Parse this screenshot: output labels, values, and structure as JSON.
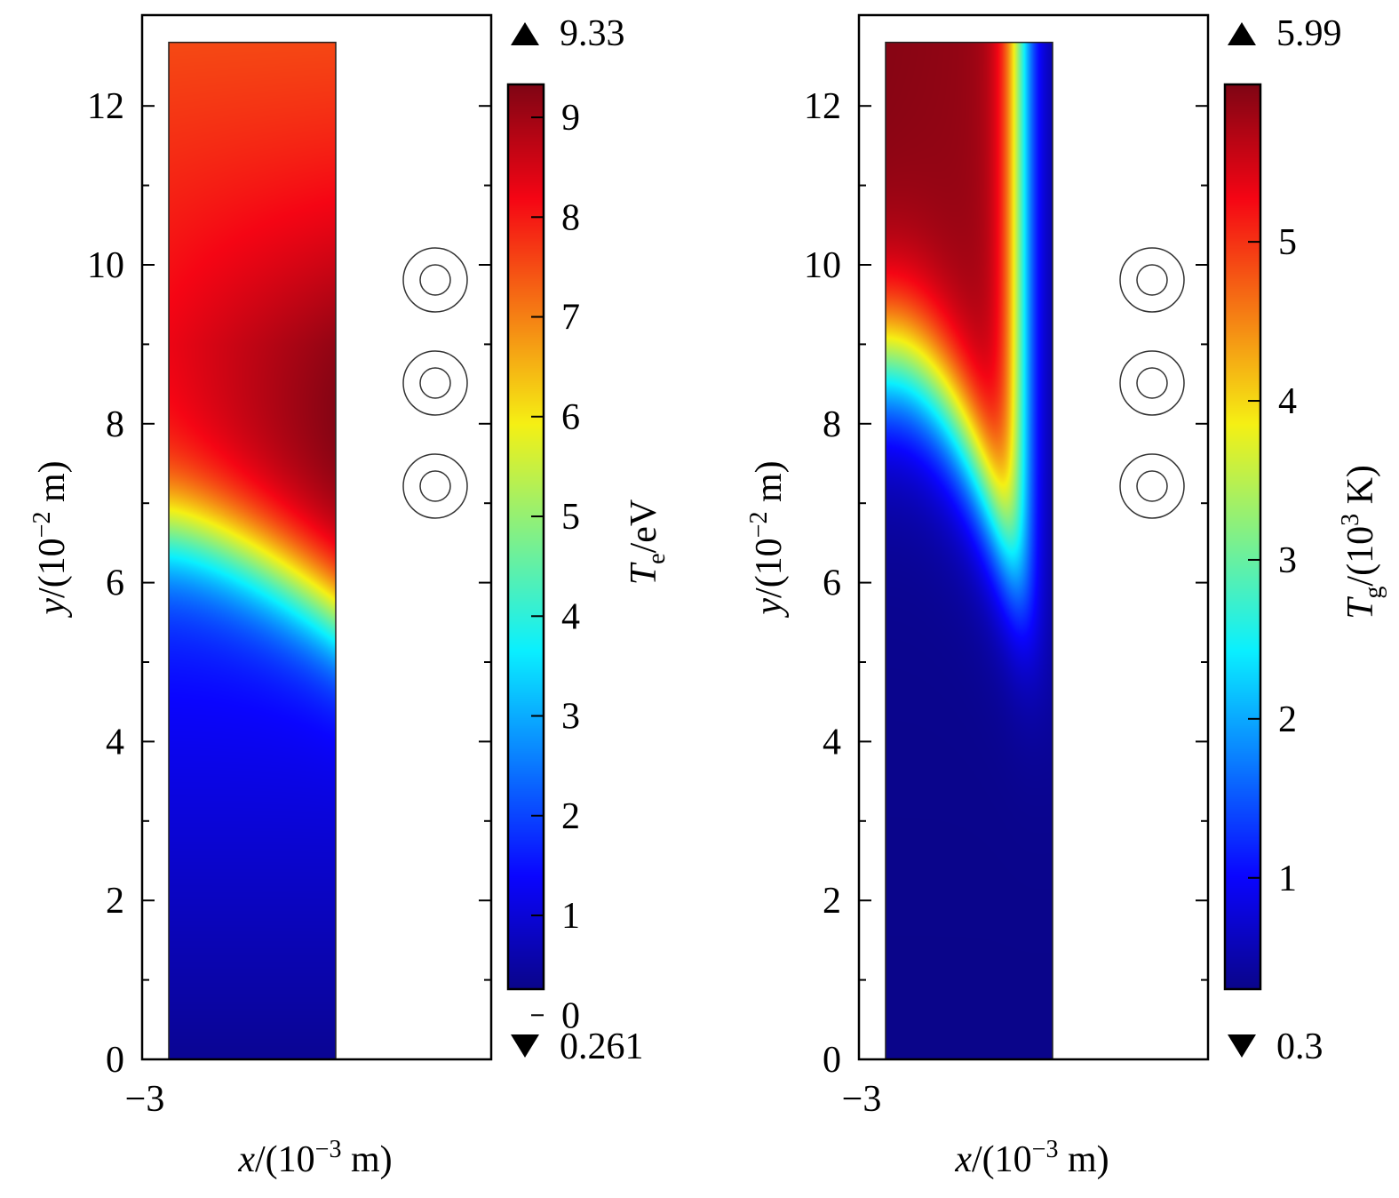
{
  "chart_data": [
    {
      "type": "heatmap",
      "xlabel": {
        "var": "x",
        "unit": "/(10",
        "exp": "−3",
        "tail": " m)"
      },
      "ylabel": {
        "var": "y",
        "unit": "/(10",
        "exp": "−2",
        "tail": " m)"
      },
      "x_ticks": [
        "−3"
      ],
      "y_ticks": [
        0,
        2,
        4,
        6,
        8,
        10,
        12
      ],
      "ylim": [
        0,
        12.8
      ],
      "colorbar": {
        "label": {
          "var": "T",
          "sub": "e",
          "tail": "/eV"
        },
        "ticks": [
          0,
          1,
          2,
          3,
          4,
          5,
          6,
          7,
          8,
          9
        ],
        "max_label": "9.33",
        "min_label": "0.261",
        "range": [
          0.261,
          9.33
        ],
        "colormap": "jet"
      },
      "coil_markers": 3
    },
    {
      "type": "heatmap",
      "xlabel": {
        "var": "x",
        "unit": "/(10",
        "exp": "−3",
        "tail": " m)"
      },
      "ylabel": {
        "var": "y",
        "unit": "/(10",
        "exp": "−2",
        "tail": " m)"
      },
      "x_ticks": [
        "−3"
      ],
      "y_ticks": [
        0,
        2,
        4,
        6,
        8,
        10,
        12
      ],
      "ylim": [
        0,
        12.8
      ],
      "colorbar": {
        "label": {
          "var": "T",
          "sub": "g",
          "tail": "/(10",
          "exp": "3",
          "tail2": " K)"
        },
        "ticks": [
          1,
          2,
          3,
          4,
          5
        ],
        "max_label": "5.99",
        "min_label": "0.3",
        "range": [
          0.3,
          5.99
        ],
        "colormap": "jet"
      },
      "coil_markers": 3
    }
  ]
}
